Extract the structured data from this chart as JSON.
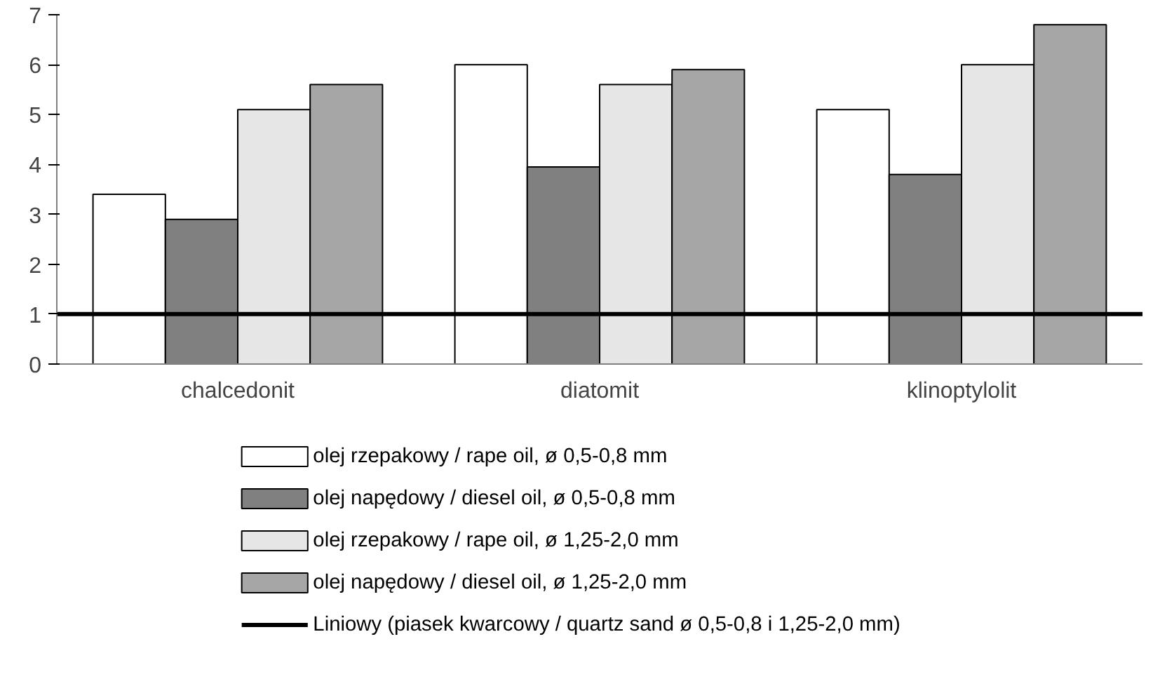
{
  "chart_data": {
    "type": "bar",
    "categories": [
      "chalcedonit",
      "diatomit",
      "klinoptylolit"
    ],
    "series": [
      {
        "name": "olej rzepakowy / rape oil, ø 0,5-0,8 mm",
        "color": "#ffffff",
        "values": [
          3.4,
          6.0,
          5.1
        ]
      },
      {
        "name": "olej napędowy / diesel oil, ø 0,5-0,8 mm",
        "color": "#808080",
        "values": [
          2.9,
          3.95,
          3.8
        ]
      },
      {
        "name": "olej rzepakowy / rape oil, ø 1,25-2,0 mm",
        "color": "#e6e6e6",
        "values": [
          5.1,
          5.6,
          6.0
        ]
      },
      {
        "name": "olej napędowy / diesel oil, ø 1,25-2,0 mm",
        "color": "#a6a6a6",
        "values": [
          5.6,
          5.9,
          6.8
        ]
      }
    ],
    "ylim": [
      0,
      7
    ],
    "yticks": [
      0,
      1,
      2,
      3,
      4,
      5,
      6,
      7
    ],
    "ref_lines": [
      {
        "axis": "y",
        "value": 1,
        "label": "Liniowy (piasek kwarcowy / quartz sand ø 0,5-0,8 i 1,25-2,0 mm)",
        "color": "#000000"
      }
    ],
    "grid": false,
    "legend": "bottom"
  }
}
